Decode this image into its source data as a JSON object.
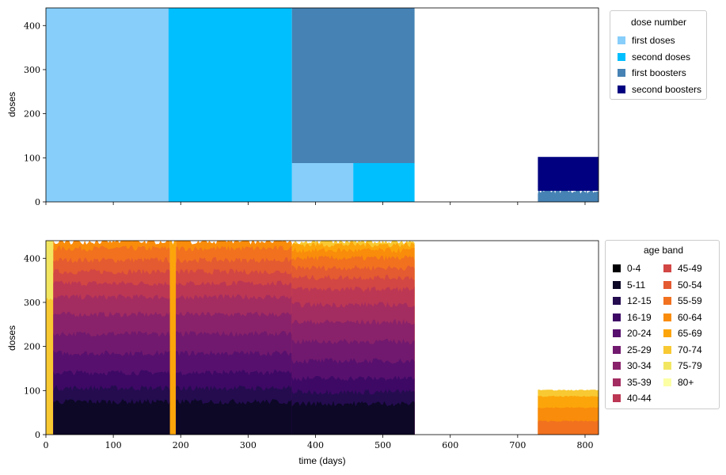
{
  "chart_data": [
    {
      "type": "area",
      "title": "",
      "xlabel": "",
      "ylabel": "doses",
      "xlim": [
        0,
        820
      ],
      "ylim": [
        0,
        440
      ],
      "xticks": [
        0,
        100,
        200,
        300,
        400,
        500,
        600,
        700,
        800
      ],
      "yticks": [
        0,
        100,
        200,
        300,
        400
      ],
      "legend_title": "dose number",
      "legend_position": "outside-top-right",
      "series": [
        {
          "name": "first doses",
          "color": "#87cefa",
          "segments": [
            {
              "x": [
                0,
                184
              ],
              "y": 440
            },
            {
              "x": [
                365,
                456
              ],
              "y": 88
            }
          ]
        },
        {
          "name": "second doses",
          "color": "#00bfff",
          "segments": [
            {
              "x": [
                182,
                365
              ],
              "y": 440
            },
            {
              "x": [
                456,
                547
              ],
              "y": 88
            }
          ]
        },
        {
          "name": "first boosters",
          "color": "#4682b4",
          "segments": [
            {
              "x": [
                365,
                547
              ],
              "y": [
                88,
                440
              ]
            },
            {
              "x": [
                730,
                820
              ],
              "y": 25
            }
          ]
        },
        {
          "name": "second boosters",
          "color": "#000080",
          "segments": [
            {
              "x": [
                730,
                820
              ],
              "y": [
                25,
                102
              ]
            }
          ]
        }
      ]
    },
    {
      "type": "area",
      "title": "",
      "xlabel": "time (days)",
      "ylabel": "doses",
      "xlim": [
        0,
        820
      ],
      "ylim": [
        0,
        440
      ],
      "xticks": [
        0,
        100,
        200,
        300,
        400,
        500,
        600,
        700,
        800
      ],
      "yticks": [
        0,
        100,
        200,
        300,
        400
      ],
      "legend_title": "age band",
      "legend_position": "outside-right",
      "stacked": true,
      "series": [
        {
          "name": "0-4",
          "color": "#000004"
        },
        {
          "name": "5-11",
          "color": "#0c0826"
        },
        {
          "name": "12-15",
          "color": "#240c4f"
        },
        {
          "name": "16-19",
          "color": "#3d0965"
        },
        {
          "name": "20-24",
          "color": "#57106e"
        },
        {
          "name": "25-29",
          "color": "#71196e"
        },
        {
          "name": "30-34",
          "color": "#89226a"
        },
        {
          "name": "35-39",
          "color": "#a32c61"
        },
        {
          "name": "40-44",
          "color": "#bc3754"
        },
        {
          "name": "45-49",
          "color": "#d24644"
        },
        {
          "name": "50-54",
          "color": "#e45a31"
        },
        {
          "name": "55-59",
          "color": "#f1711f"
        },
        {
          "name": "60-64",
          "color": "#f98c0a"
        },
        {
          "name": "65-69",
          "color": "#fca50a"
        },
        {
          "name": "70-74",
          "color": "#f8c932"
        },
        {
          "name": "75-79",
          "color": "#f2e661"
        },
        {
          "name": "80+",
          "color": "#fcffa4"
        }
      ],
      "periods": [
        {
          "x": [
            0,
            11
          ],
          "total": 440,
          "bands": [
            [
              14,
              0.7
            ],
            [
              15,
              0.3
            ]
          ]
        },
        {
          "x": [
            11,
            184
          ],
          "total": 440,
          "bands": [
            [
              1,
              0.17
            ],
            [
              2,
              0.07
            ],
            [
              3,
              0.08
            ],
            [
              4,
              0.1
            ],
            [
              5,
              0.1
            ],
            [
              6,
              0.1
            ],
            [
              7,
              0.09
            ],
            [
              8,
              0.07
            ],
            [
              9,
              0.06
            ],
            [
              10,
              0.06
            ],
            [
              11,
              0.06
            ],
            [
              12,
              0.04
            ]
          ]
        },
        {
          "x": [
            184,
            193
          ],
          "total": 440,
          "bands": [
            [
              13,
              1.0
            ]
          ]
        },
        {
          "x": [
            193,
            365
          ],
          "total": 440,
          "bands": [
            [
              1,
              0.17
            ],
            [
              2,
              0.07
            ],
            [
              3,
              0.08
            ],
            [
              4,
              0.1
            ],
            [
              5,
              0.1
            ],
            [
              6,
              0.1
            ],
            [
              7,
              0.09
            ],
            [
              8,
              0.07
            ],
            [
              9,
              0.06
            ],
            [
              10,
              0.06
            ],
            [
              11,
              0.06
            ],
            [
              12,
              0.04
            ]
          ]
        },
        {
          "x": [
            365,
            547
          ],
          "total": 440,
          "bands": [
            [
              1,
              0.16
            ],
            [
              2,
              0.06
            ],
            [
              3,
              0.07
            ],
            [
              4,
              0.09
            ],
            [
              5,
              0.1
            ],
            [
              6,
              0.1
            ],
            [
              7,
              0.09
            ],
            [
              8,
              0.08
            ],
            [
              9,
              0.06
            ],
            [
              10,
              0.05
            ],
            [
              11,
              0.05
            ],
            [
              12,
              0.04
            ],
            [
              13,
              0.03
            ],
            [
              14,
              0.02
            ]
          ]
        },
        {
          "x": [
            730,
            820
          ],
          "total": 102,
          "bands": [
            [
              11,
              0.3
            ],
            [
              12,
              0.3
            ],
            [
              13,
              0.25
            ],
            [
              14,
              0.15
            ]
          ]
        }
      ]
    }
  ]
}
